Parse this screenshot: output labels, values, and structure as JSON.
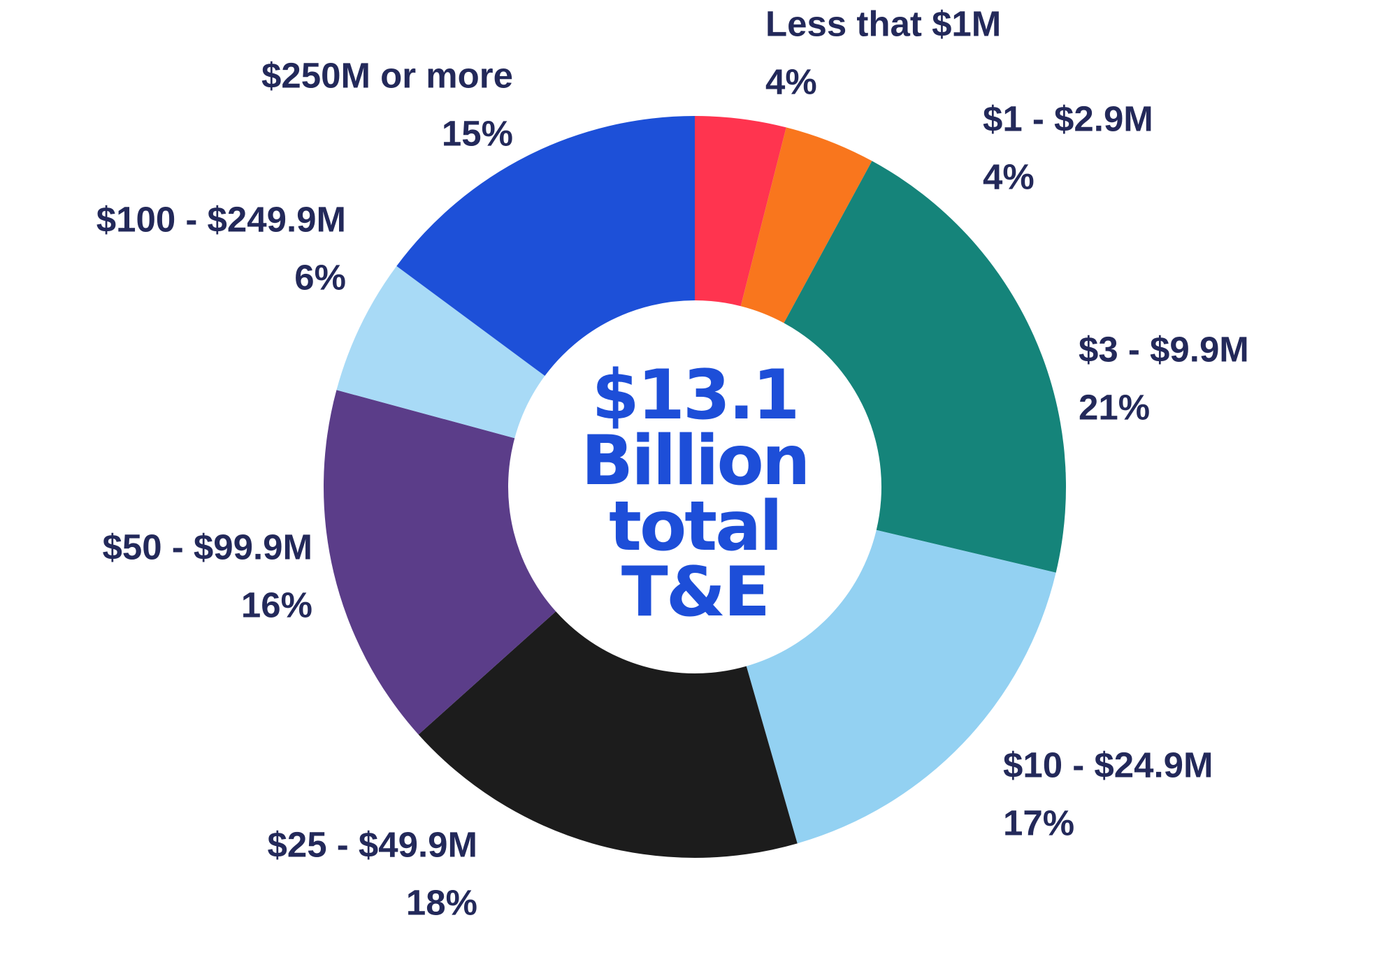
{
  "chart_data": {
    "type": "donut",
    "categories": [
      "Less that $1M",
      "$1 - $2.9M",
      "$3 - $9.9M",
      "$10 - $24.9M",
      "$25 - $49.9M",
      "$50 - $99.9M",
      "$100 - $249.9M",
      "$250M or more"
    ],
    "values": [
      4,
      4,
      21,
      17,
      18,
      16,
      6,
      15
    ],
    "value_labels": [
      "4%",
      "4%",
      "21%",
      "17%",
      "18%",
      "16%",
      "6%",
      "15%"
    ],
    "colors": [
      "#ff344f",
      "#f9761d",
      "#15847a",
      "#93d1f2",
      "#1c1c1c",
      "#5b3d89",
      "#a8daf6",
      "#1d50d8"
    ],
    "center_text": [
      "$13.1",
      "Billion",
      "total",
      "T&E"
    ]
  }
}
